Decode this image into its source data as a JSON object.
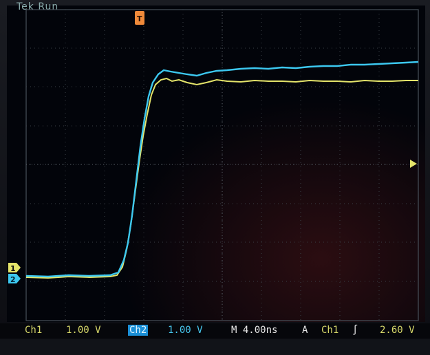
{
  "header": {
    "brand_fragment": "Tek Run"
  },
  "markers": {
    "trigger_position_label": "T",
    "ch1_ground_label": "1",
    "ch2_ground_label": "2",
    "trigger_level_label": ""
  },
  "status": {
    "ch1_label": "Ch1",
    "ch1_scale": "1.00 V",
    "ch2_label": "Ch2",
    "ch2_scale": "1.00 V",
    "timebase": "M 4.00ns",
    "trigger_mode": "A",
    "trigger_source": "Ch1",
    "trigger_slope": "∫",
    "trigger_level": "2.60 V"
  },
  "colors": {
    "ch1": "#e4e46a",
    "ch2": "#3cc8f0",
    "trigger_marker": "#f08a3a",
    "grid": "#3a3f46"
  }
}
